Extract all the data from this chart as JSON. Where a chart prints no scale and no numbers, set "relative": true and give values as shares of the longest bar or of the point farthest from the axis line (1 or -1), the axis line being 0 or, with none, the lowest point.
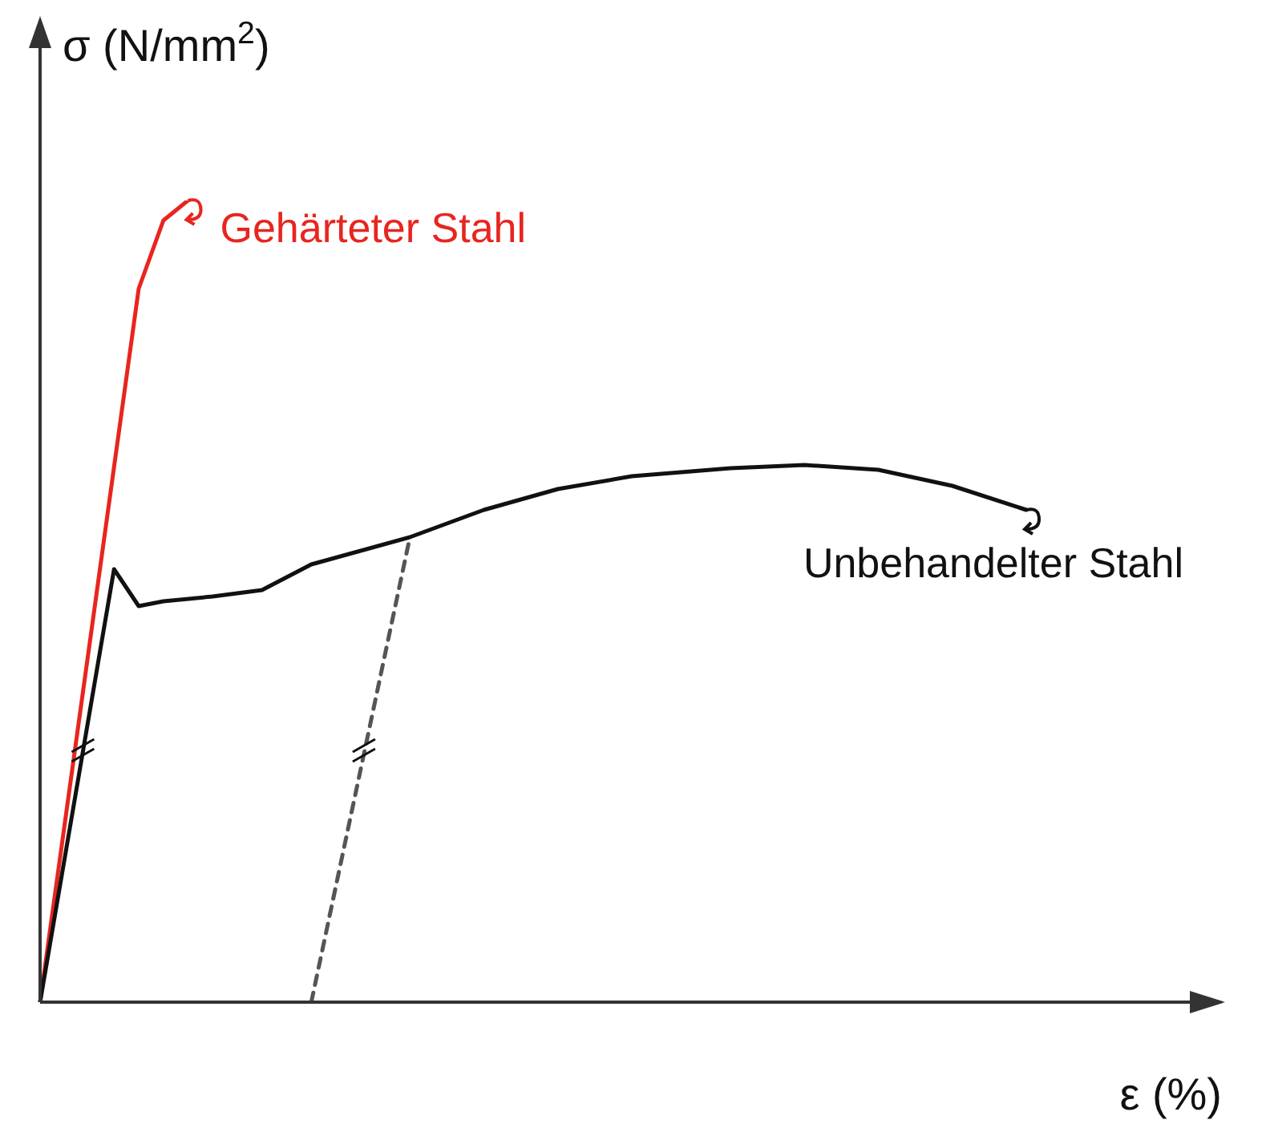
{
  "chart_data": {
    "type": "line",
    "relative": true,
    "xlabel": "ε (%)",
    "ylabel": "σ (N/mm$^{2}$)",
    "marker": "none",
    "legend": "right",
    "categories": [
      null,
      null,
      null,
      null,
      null,
      null,
      null,
      null,
      null,
      null,
      null,
      null,
      null,
      null,
      null,
      null,
      null,
      null,
      null,
      null,
      null,
      null,
      null,
      null,
      null,
      null,
      null,
      null,
      null,
      null,
      null,
      null,
      null,
      null,
      null,
      null,
      null,
      null,
      null,
      null,
      null
    ],
    "series": [
      {
        "name": "Gehärteter Stahl",
        "color": "#e8251f",
        "values": [
          0,
          null,
          null,
          null,
          0.89,
          0.975,
          1,
          null,
          null,
          null,
          null,
          null,
          null,
          null,
          null,
          null,
          null,
          null,
          null,
          null,
          null,
          null,
          null,
          null,
          null,
          null,
          null,
          null,
          null,
          null,
          null,
          null,
          null,
          null,
          null,
          null,
          null,
          null,
          null,
          null,
          null
        ]
      },
      {
        "name": "Unbehandelter Stahl",
        "color": "#111111",
        "values": [
          0,
          null,
          null,
          0.54,
          0.494,
          0.5,
          null,
          0.506,
          null,
          0.514,
          0.53,
          0.546,
          null,
          null,
          null,
          0.58,
          null,
          null,
          0.614,
          null,
          null,
          0.64,
          null,
          null,
          0.656,
          null,
          null,
          null,
          0.666,
          null,
          null,
          0.67,
          null,
          null,
          0.664,
          null,
          null,
          0.644,
          null,
          null,
          0.614
        ]
      },
      {
        "color": "#555555",
        "line_style": "dashed",
        "values": [
          null,
          null,
          null,
          null,
          null,
          null,
          null,
          null,
          null,
          null,
          null,
          0,
          null,
          null,
          null,
          0.58,
          null,
          null,
          null,
          null,
          null,
          null,
          null,
          null,
          null,
          null,
          null,
          null,
          null,
          null,
          null,
          null,
          null,
          null,
          null,
          null,
          null,
          null,
          null,
          null,
          null
        ]
      }
    ]
  }
}
